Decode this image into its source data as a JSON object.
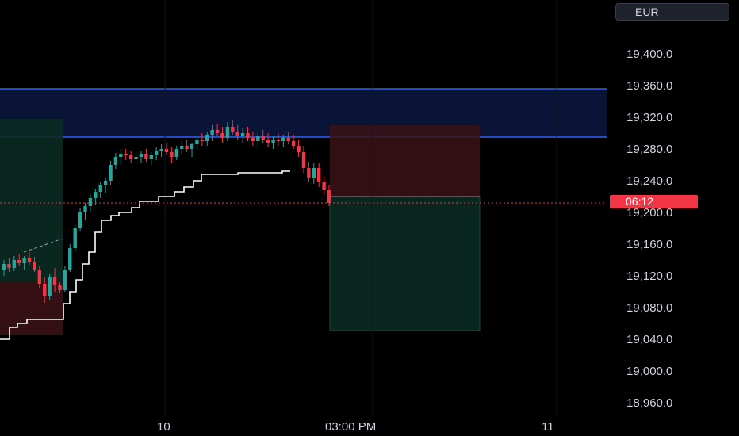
{
  "currency": {
    "label": "EUR"
  },
  "price_tag": {
    "label": "06:12"
  },
  "colors": {
    "up": "#26a69a",
    "down": "#f23645",
    "zone_line": "#2962ff",
    "zone_fill": "#0c1840",
    "stop_fill": "#3a1216",
    "target_fill": "#0a2a22",
    "trail_line": "#ffffff",
    "text": "#d1d4dc"
  },
  "chart_data": {
    "type": "candlestick",
    "title": "",
    "xlabel": "",
    "ylabel": "",
    "ylim": [
      18950,
      19420
    ],
    "y_tick_labels": [
      "19,400.0",
      "19,360.0",
      "19,320.0",
      "19,280.0",
      "19,240.0",
      "19,200.0",
      "19,160.0",
      "19,120.0",
      "19,080.0",
      "19,040.0",
      "19,000.0",
      "18,960.0"
    ],
    "y_ticks": [
      19400,
      19360,
      19320,
      19280,
      19240,
      19200,
      19160,
      19120,
      19080,
      19040,
      19000,
      18960
    ],
    "x_tick_labels": [
      "10",
      "03:00 PM",
      "11"
    ],
    "current_price": 19212,
    "supply_zone": {
      "top": 19356,
      "bottom": 19295
    },
    "stop_zone": {
      "top": 19310,
      "bottom": 19220
    },
    "target_zone": {
      "top": 19220,
      "bottom": 19051
    },
    "grid": true,
    "series": [
      {
        "name": "",
        "kind": "candles",
        "values": [
          [
            19128,
            19140,
            19120,
            19135
          ],
          [
            19135,
            19142,
            19125,
            19130
          ],
          [
            19130,
            19145,
            19126,
            19140
          ],
          [
            19140,
            19148,
            19132,
            19136
          ],
          [
            19136,
            19145,
            19128,
            19142
          ],
          [
            19142,
            19150,
            19134,
            19138
          ],
          [
            19138,
            19144,
            19125,
            19128
          ],
          [
            19128,
            19132,
            19105,
            19110
          ],
          [
            19110,
            19118,
            19086,
            19094
          ],
          [
            19094,
            19122,
            19090,
            19118
          ],
          [
            19118,
            19130,
            19100,
            19108
          ],
          [
            19108,
            19112,
            19098,
            19102
          ],
          [
            19102,
            19132,
            19100,
            19128
          ],
          [
            19128,
            19160,
            19125,
            19155
          ],
          [
            19155,
            19185,
            19150,
            19180
          ],
          [
            19180,
            19205,
            19176,
            19200
          ],
          [
            19200,
            19212,
            19190,
            19208
          ],
          [
            19208,
            19222,
            19200,
            19218
          ],
          [
            19218,
            19230,
            19210,
            19226
          ],
          [
            19226,
            19238,
            19218,
            19234
          ],
          [
            19234,
            19244,
            19224,
            19240
          ],
          [
            19240,
            19265,
            19235,
            19260
          ],
          [
            19260,
            19275,
            19255,
            19270
          ],
          [
            19270,
            19280,
            19260,
            19274
          ],
          [
            19274,
            19280,
            19266,
            19272
          ],
          [
            19272,
            19278,
            19262,
            19268
          ],
          [
            19268,
            19276,
            19260,
            19270
          ],
          [
            19270,
            19278,
            19262,
            19274
          ],
          [
            19274,
            19280,
            19264,
            19268
          ],
          [
            19268,
            19276,
            19260,
            19272
          ],
          [
            19272,
            19282,
            19266,
            19278
          ],
          [
            19278,
            19286,
            19270,
            19280
          ],
          [
            19280,
            19288,
            19272,
            19276
          ],
          [
            19276,
            19282,
            19262,
            19270
          ],
          [
            19270,
            19284,
            19266,
            19280
          ],
          [
            19280,
            19290,
            19274,
            19284
          ],
          [
            19284,
            19292,
            19276,
            19280
          ],
          [
            19280,
            19288,
            19270,
            19286
          ],
          [
            19286,
            19296,
            19280,
            19292
          ],
          [
            19292,
            19300,
            19284,
            19290
          ],
          [
            19290,
            19302,
            19284,
            19298
          ],
          [
            19298,
            19310,
            19290,
            19304
          ],
          [
            19304,
            19312,
            19296,
            19300
          ],
          [
            19300,
            19308,
            19288,
            19294
          ],
          [
            19294,
            19314,
            19290,
            19308
          ],
          [
            19308,
            19316,
            19298,
            19302
          ],
          [
            19302,
            19310,
            19292,
            19296
          ],
          [
            19296,
            19306,
            19288,
            19300
          ],
          [
            19300,
            19308,
            19290,
            19294
          ],
          [
            19294,
            19302,
            19284,
            19290
          ],
          [
            19290,
            19300,
            19282,
            19296
          ],
          [
            19296,
            19304,
            19288,
            19292
          ],
          [
            19292,
            19300,
            19282,
            19288
          ],
          [
            19288,
            19296,
            19280,
            19292
          ],
          [
            19292,
            19300,
            19284,
            19290
          ],
          [
            19290,
            19298,
            19282,
            19294
          ],
          [
            19294,
            19302,
            19286,
            19290
          ],
          [
            19290,
            19298,
            19280,
            19284
          ],
          [
            19284,
            19292,
            19270,
            19276
          ],
          [
            19276,
            19284,
            19250,
            19256
          ],
          [
            19256,
            19264,
            19238,
            19244
          ],
          [
            19244,
            19262,
            19236,
            19256
          ],
          [
            19256,
            19262,
            19232,
            19238
          ],
          [
            19238,
            19246,
            19222,
            19228
          ],
          [
            19228,
            19234,
            19208,
            19212
          ]
        ]
      }
    ]
  }
}
